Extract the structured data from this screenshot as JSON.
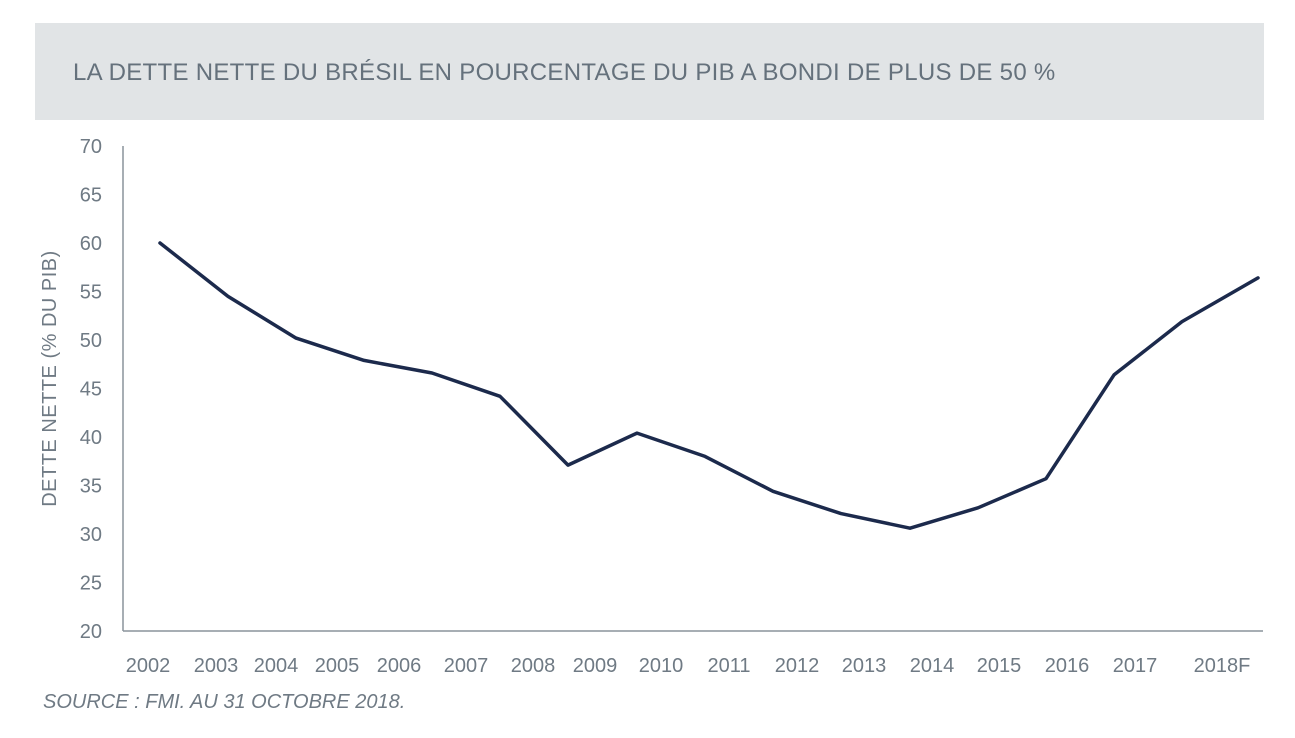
{
  "chart_data": {
    "type": "line",
    "title": "LA DETTE NETTE DU BRÉSIL EN POURCENTAGE DU PIB A BONDI DE PLUS DE 50 %",
    "xlabel": "",
    "ylabel": "DETTE NETTE (% DU PIB)",
    "categories": [
      "2002",
      "2003",
      "2004",
      "2005",
      "2006",
      "2007",
      "2008",
      "2009",
      "2010",
      "2011",
      "2012",
      "2013",
      "2014",
      "2015",
      "2016",
      "2017",
      "2018F"
    ],
    "values": [
      60.0,
      54.5,
      50.2,
      47.9,
      46.6,
      44.2,
      37.1,
      40.4,
      38.0,
      34.4,
      32.1,
      30.6,
      32.7,
      35.7,
      46.4,
      51.9,
      56.4
    ],
    "ylim": [
      20,
      70
    ],
    "yticks": [
      20,
      25,
      30,
      35,
      40,
      45,
      50,
      55,
      60,
      65,
      70
    ],
    "grid": false,
    "line_color": "#1c2a4c"
  },
  "source": "SOURCE : FMI. AU 31 OCTOBRE 2018."
}
